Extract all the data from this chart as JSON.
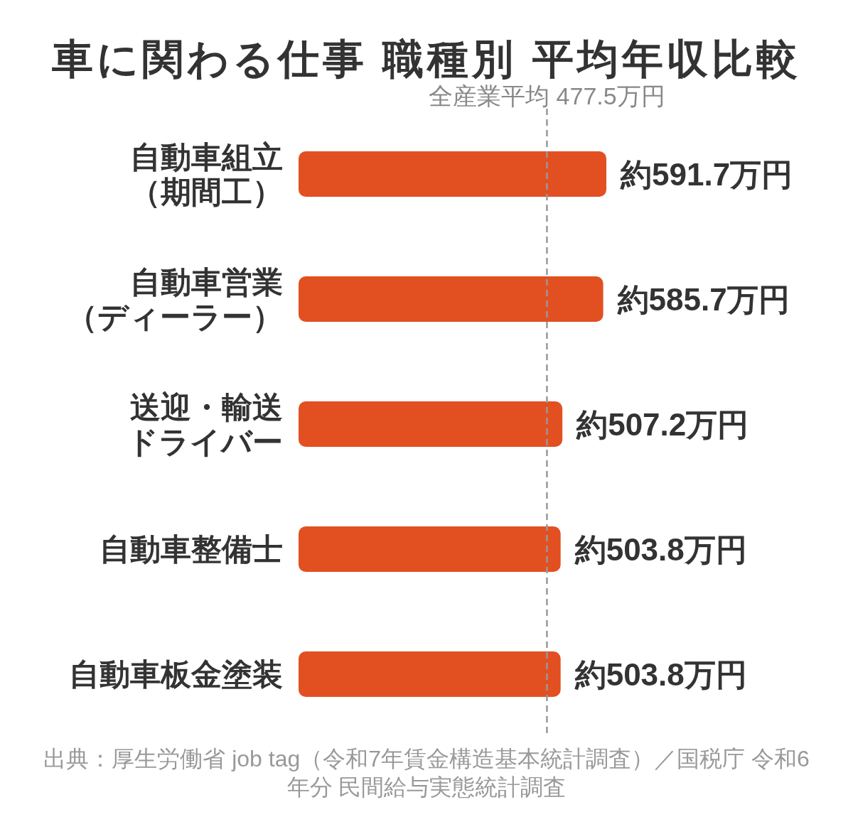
{
  "chart_data": {
    "type": "bar",
    "orientation": "horizontal",
    "title": "車に関わる仕事 職種別 平均年収比較",
    "categories": [
      "自動車組立（期間工）",
      "自動車営業（ディーラー）",
      "送迎・輸送ドライバー",
      "自動車整備士",
      "自動車板金塗装"
    ],
    "values": [
      591.7,
      585.7,
      507.2,
      503.8,
      503.8
    ],
    "color": "#e25022",
    "value_labels": [
      "約591.7万円",
      "約585.7万円",
      "約507.2万円",
      "約503.8万円",
      "約503.8万円"
    ],
    "ref_lines": [
      {
        "axis": "x",
        "value": 477.5,
        "label": "全産業平均 477.5万円",
        "color": "#999999",
        "line_style": "dashed"
      }
    ],
    "tick_labels": "y",
    "annotations": [
      "出典：厚生労働省 job tag（令和7年賃金構造基本統計調査）／国税庁 令和6年分 民間給与実態統計調査"
    ]
  }
}
